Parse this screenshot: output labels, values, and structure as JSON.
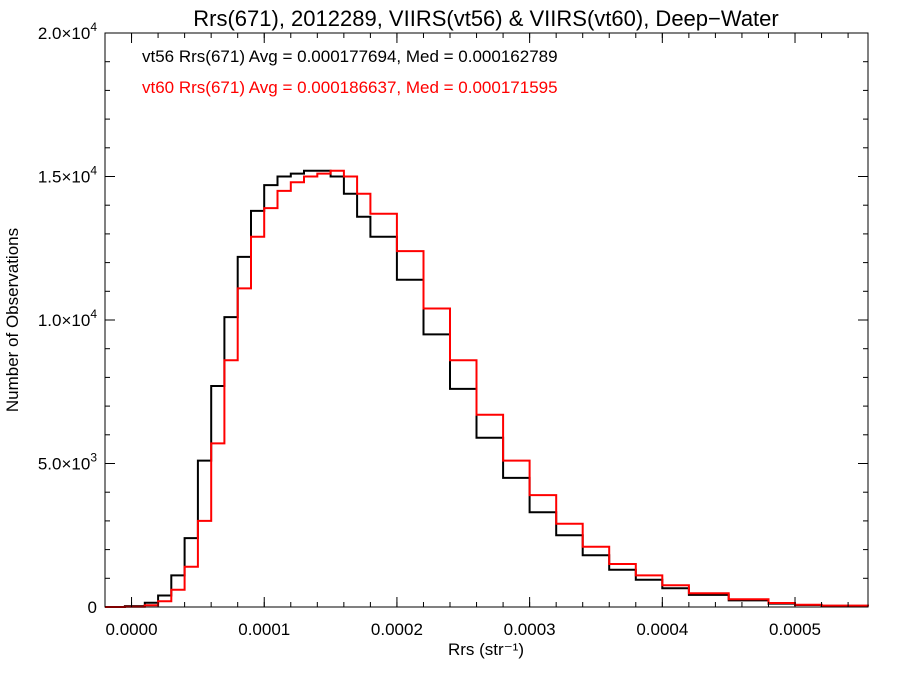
{
  "chart_data": {
    "type": "line",
    "title": "Rrs(671), 2012289, VIIRS(vt56) & VIIRS(vt60), Deep−Water",
    "xlabel": "Rrs (str⁻¹)",
    "ylabel": "Number of Observations",
    "xlim": [
      -2e-05,
      0.000555
    ],
    "ylim": [
      0,
      20000
    ],
    "xticks": [
      0.0,
      0.0001,
      0.0002,
      0.0003,
      0.0004,
      0.0005
    ],
    "xtick_labels": [
      "0.0000",
      "0.0001",
      "0.0002",
      "0.0003",
      "0.0004",
      "0.0005"
    ],
    "yticks": [
      0,
      5000,
      10000,
      15000,
      20000
    ],
    "ytick_labels": [
      {
        "mantissa": "0",
        "exponent": ""
      },
      {
        "mantissa": "5.0×10",
        "exponent": "3"
      },
      {
        "mantissa": "1.0×10",
        "exponent": "4"
      },
      {
        "mantissa": "1.5×10",
        "exponent": "4"
      },
      {
        "mantissa": "2.0×10",
        "exponent": "4"
      }
    ],
    "grid": false,
    "legend_position": "top-left",
    "series": [
      {
        "name": "vt56",
        "color": "#000000",
        "legend_text": "vt56 Rrs(671) Avg = 0.000177694, Med = 0.000162789",
        "step": "histogram",
        "x": [
          -2e-05,
          -5e-06,
          1e-05,
          2e-05,
          3e-05,
          4e-05,
          5e-05,
          6e-05,
          7e-05,
          8e-05,
          9e-05,
          0.0001,
          0.00011,
          0.00012,
          0.00013,
          0.00014,
          0.00015,
          0.00016,
          0.00017,
          0.00018,
          0.0002,
          0.00022,
          0.00024,
          0.00026,
          0.00028,
          0.0003,
          0.00032,
          0.00034,
          0.00036,
          0.00038,
          0.0004,
          0.00042,
          0.00045,
          0.00048,
          0.0005,
          0.00052,
          0.000555
        ],
        "y": [
          0,
          30,
          150,
          400,
          1100,
          2400,
          5100,
          7700,
          10100,
          12200,
          13800,
          14700,
          15000,
          15100,
          15200,
          15200,
          15000,
          14400,
          13600,
          12900,
          11400,
          9500,
          7600,
          5900,
          4500,
          3300,
          2500,
          1800,
          1300,
          950,
          650,
          420,
          230,
          120,
          70,
          40,
          20
        ]
      },
      {
        "name": "vt60",
        "color": "#ff0000",
        "legend_text": "vt60 Rrs(671) Avg = 0.000186637, Med = 0.000171595",
        "step": "histogram",
        "x": [
          -2e-05,
          -5e-06,
          1e-05,
          2e-05,
          3e-05,
          4e-05,
          5e-05,
          6e-05,
          7e-05,
          8e-05,
          9e-05,
          0.0001,
          0.00011,
          0.00012,
          0.00013,
          0.00014,
          0.00015,
          0.00016,
          0.00017,
          0.00018,
          0.0002,
          0.00022,
          0.00024,
          0.00026,
          0.00028,
          0.0003,
          0.00032,
          0.00034,
          0.00036,
          0.00038,
          0.0004,
          0.00042,
          0.00045,
          0.00048,
          0.0005,
          0.00052,
          0.000555
        ],
        "y": [
          0,
          10,
          60,
          200,
          600,
          1400,
          3000,
          5700,
          8600,
          11100,
          12900,
          13900,
          14500,
          14800,
          15000,
          15100,
          15200,
          15000,
          14400,
          13700,
          12400,
          10400,
          8600,
          6700,
          5100,
          3900,
          2900,
          2100,
          1500,
          1100,
          760,
          480,
          270,
          140,
          80,
          50,
          20
        ]
      }
    ]
  }
}
